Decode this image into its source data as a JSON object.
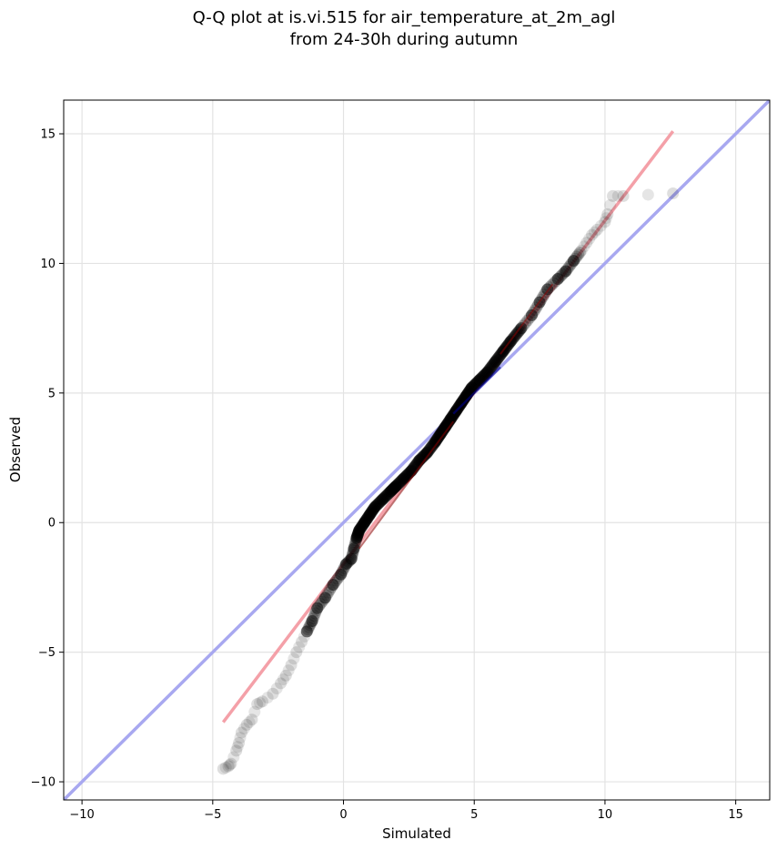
{
  "chart_data": {
    "type": "scatter",
    "title": "Q-Q plot at is.vi.515 for air_temperature_at_2m_agl",
    "subtitle": "from 24-30h during autumn",
    "xlabel": "Simulated",
    "ylabel": "Observed",
    "xlim": [
      -10.7,
      16.3
    ],
    "ylim": [
      -10.7,
      16.3
    ],
    "xticks": [
      -10,
      -5,
      0,
      5,
      10,
      15
    ],
    "yticks": [
      -10,
      -5,
      0,
      5,
      10,
      15
    ],
    "xtick_labels": [
      "−10",
      "−5",
      "0",
      "5",
      "10",
      "15"
    ],
    "ytick_labels": [
      "−10",
      "−5",
      "0",
      "5",
      "10",
      "15"
    ],
    "grid": true,
    "colors": {
      "points": "#000000",
      "fit_line": "#f4a0a8",
      "identity_line": "#a8a8f0",
      "core_line_dark_blue": "#00008b",
      "core_line_dark_red": "#8b0000"
    },
    "reference_lines": [
      {
        "kind": "identity",
        "from": [
          -10.7,
          -10.7
        ],
        "to": [
          16.3,
          16.3
        ]
      },
      {
        "kind": "fit",
        "from": [
          -4.6,
          -7.7
        ],
        "to": [
          12.6,
          15.1
        ]
      }
    ],
    "series": [
      {
        "kind": "quantiles",
        "points": [
          [
            -4.6,
            -9.5
          ],
          [
            -4.4,
            -9.4
          ],
          [
            -4.3,
            -9.3
          ],
          [
            -4.1,
            -8.8
          ],
          [
            -4.0,
            -8.5
          ],
          [
            -3.9,
            -8.1
          ],
          [
            -3.7,
            -7.8
          ],
          [
            -3.5,
            -7.6
          ],
          [
            -3.3,
            -7.0
          ],
          [
            -3.1,
            -6.9
          ],
          [
            -2.7,
            -6.6
          ],
          [
            -2.4,
            -6.2
          ],
          [
            -2.2,
            -5.9
          ],
          [
            -2.0,
            -5.5
          ],
          [
            -1.8,
            -5.0
          ],
          [
            -1.6,
            -4.6
          ],
          [
            -1.4,
            -4.2
          ],
          [
            -1.2,
            -3.8
          ],
          [
            -1.0,
            -3.3
          ],
          [
            -0.7,
            -2.9
          ],
          [
            -0.4,
            -2.4
          ],
          [
            -0.1,
            -2.0
          ],
          [
            0.1,
            -1.6
          ],
          [
            0.3,
            -1.4
          ],
          [
            0.4,
            -1.0
          ],
          [
            0.5,
            -0.6
          ],
          [
            0.6,
            -0.3
          ],
          [
            0.8,
            0.0
          ],
          [
            1.0,
            0.3
          ],
          [
            1.2,
            0.6
          ],
          [
            1.5,
            0.9
          ],
          [
            1.8,
            1.2
          ],
          [
            2.0,
            1.4
          ],
          [
            2.3,
            1.7
          ],
          [
            2.6,
            2.0
          ],
          [
            2.9,
            2.4
          ],
          [
            3.2,
            2.7
          ],
          [
            3.5,
            3.1
          ],
          [
            3.7,
            3.4
          ],
          [
            3.9,
            3.7
          ],
          [
            4.1,
            4.0
          ],
          [
            4.3,
            4.3
          ],
          [
            4.5,
            4.6
          ],
          [
            4.7,
            4.9
          ],
          [
            4.9,
            5.2
          ],
          [
            5.2,
            5.5
          ],
          [
            5.5,
            5.8
          ],
          [
            5.8,
            6.2
          ],
          [
            6.1,
            6.6
          ],
          [
            6.4,
            7.0
          ],
          [
            6.8,
            7.5
          ],
          [
            7.2,
            8.0
          ],
          [
            7.5,
            8.5
          ],
          [
            7.8,
            9.0
          ],
          [
            8.2,
            9.4
          ],
          [
            8.5,
            9.7
          ],
          [
            8.8,
            10.1
          ],
          [
            9.1,
            10.5
          ],
          [
            9.3,
            10.8
          ],
          [
            9.5,
            11.1
          ],
          [
            9.7,
            11.3
          ],
          [
            10.0,
            11.6
          ],
          [
            10.1,
            11.9
          ],
          [
            10.3,
            12.6
          ],
          [
            10.7,
            12.6
          ],
          [
            12.6,
            12.7
          ]
        ]
      }
    ]
  }
}
